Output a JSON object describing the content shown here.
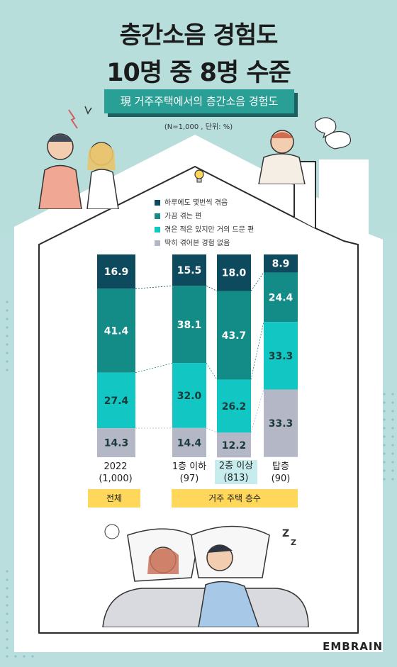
{
  "title": {
    "line1": "층간소음 경험도",
    "line2": "10명 중 8명 수준"
  },
  "subtitle": "現 거주주택에서의 층간소음 경험도",
  "unit_note": "(N=1,000 , 단위: %)",
  "logo": "EMBRAIN",
  "colors": {
    "daily": "#0d4a5e",
    "sometimes": "#138c87",
    "rarely": "#12c6c4",
    "never": "#b4b7c6",
    "tag": "#ffd75a",
    "highlight": "#c6ecee"
  },
  "tags": {
    "overall": "전체",
    "floor_group": "거주 주택 층수"
  },
  "chart_data": {
    "type": "bar",
    "stacked": true,
    "ylim": [
      0,
      100
    ],
    "categories": [
      "2022 (1,000)",
      "1층 이하 (97)",
      "2층 이상 (813)",
      "탑층 (90)"
    ],
    "category_labels": [
      {
        "line1": "2022",
        "line2": "(1,000)"
      },
      {
        "line1": "1층 이하",
        "line2": "(97)"
      },
      {
        "line1": "2층 이상",
        "line2": "(813)"
      },
      {
        "line1": "탑층",
        "line2": "(90)"
      }
    ],
    "series": [
      {
        "name": "하루에도 몇번씩 겪음",
        "values": [
          16.9,
          15.5,
          18.0,
          8.9
        ]
      },
      {
        "name": "가끔 겪는 편",
        "values": [
          41.4,
          38.1,
          43.7,
          24.4
        ]
      },
      {
        "name": "겪은 적은 있지만 거의 드문 편",
        "values": [
          27.4,
          32.0,
          26.2,
          33.3
        ]
      },
      {
        "name": "딱히 겪어본 경험 없음",
        "values": [
          14.3,
          14.4,
          12.2,
          33.3
        ]
      }
    ],
    "legend_position": "top"
  }
}
